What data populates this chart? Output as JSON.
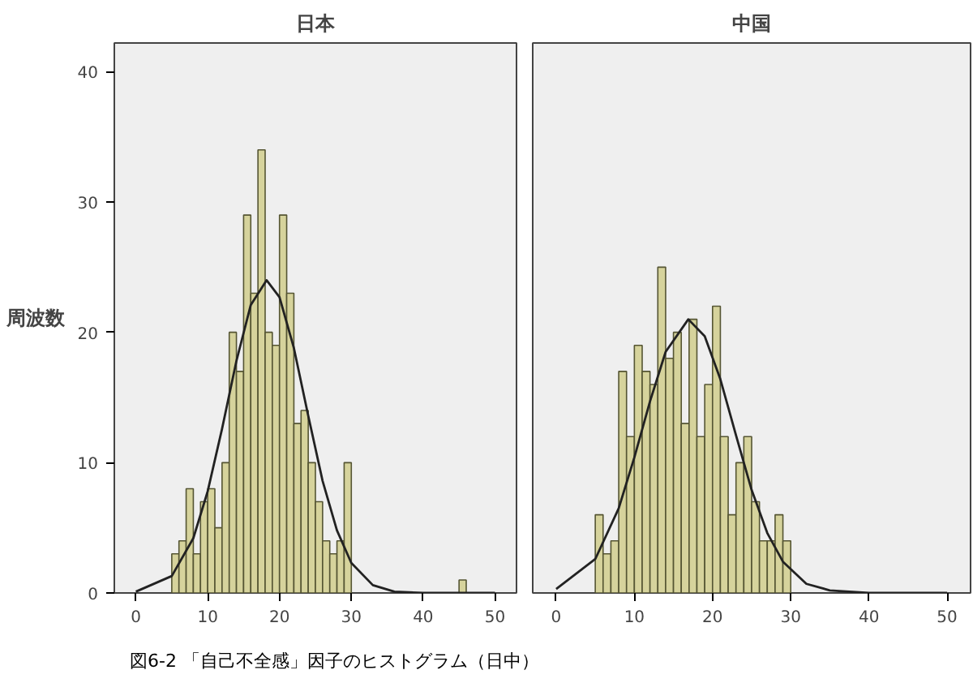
{
  "chart_data": [
    {
      "type": "histogram",
      "title": "日本",
      "ylabel": "周波数",
      "bins": [
        5,
        6,
        7,
        8,
        9,
        10,
        11,
        12,
        13,
        14,
        15,
        16,
        17,
        18,
        19,
        20,
        21,
        22,
        23,
        24,
        25,
        26,
        27,
        28,
        29,
        30,
        31,
        32,
        33,
        34,
        35,
        36,
        37,
        38,
        39,
        40,
        41,
        42,
        43,
        44,
        45,
        46
      ],
      "values": [
        3,
        4,
        8,
        3,
        7,
        8,
        5,
        10,
        20,
        17,
        29,
        23,
        34,
        20,
        19,
        29,
        23,
        13,
        14,
        10,
        7,
        4,
        3,
        4,
        10,
        0,
        0,
        0,
        0,
        0,
        0,
        0,
        0,
        0,
        0,
        0,
        0,
        0,
        0,
        0,
        1
      ],
      "color": "#d6d39c",
      "xlim": [
        -3,
        53
      ],
      "ylim": [
        0,
        42.2
      ],
      "xticks": [
        0,
        10,
        20,
        30,
        40,
        50
      ],
      "yticks": [
        0,
        10,
        20,
        30,
        40
      ],
      "grid": false,
      "series": [
        {
          "type": "line",
          "color": "#222222",
          "x": [
            0,
            5,
            8,
            10,
            12,
            14,
            16,
            18.2,
            20,
            22,
            24,
            26,
            28,
            30,
            33,
            36,
            40,
            50
          ],
          "values": [
            0.1,
            1.3,
            4.2,
            7.8,
            12.6,
            17.8,
            22.1,
            24,
            22.7,
            18.8,
            13.6,
            8.6,
            4.8,
            2.3,
            0.6,
            0.1,
            0,
            0
          ]
        }
      ],
      "annotations": [
        "図6-2 「自己不全感」因子のヒストグラム（日中）"
      ]
    },
    {
      "type": "histogram",
      "title": "中国",
      "bins": [
        5,
        6,
        7,
        8,
        9,
        10,
        11,
        12,
        13,
        14,
        15,
        16,
        17,
        18,
        19,
        20,
        21,
        22,
        23,
        24,
        25,
        26,
        27,
        28,
        29,
        30
      ],
      "values": [
        6,
        3,
        4,
        17,
        12,
        19,
        17,
        16,
        25,
        18,
        20,
        13,
        21,
        12,
        16,
        22,
        12,
        6,
        10,
        12,
        7,
        4,
        4,
        6,
        4
      ],
      "color": "#d6d39c",
      "xlim": [
        -3,
        53
      ],
      "ylim": [
        0,
        42.2
      ],
      "xticks": [
        0,
        10,
        20,
        30,
        40,
        50
      ],
      "yticks": [
        0,
        10,
        20,
        30,
        40
      ],
      "grid": false,
      "tick_labels": "x",
      "series": [
        {
          "type": "line",
          "color": "#222222",
          "x": [
            0,
            5,
            8,
            10,
            12,
            14,
            16.9,
            19,
            21,
            23,
            25,
            27,
            29,
            32,
            35,
            40,
            50
          ],
          "values": [
            0.3,
            2.6,
            6.5,
            10.4,
            14.7,
            18.5,
            21,
            19.7,
            16.4,
            12.1,
            7.9,
            4.6,
            2.4,
            0.7,
            0.2,
            0,
            0
          ]
        }
      ]
    }
  ]
}
